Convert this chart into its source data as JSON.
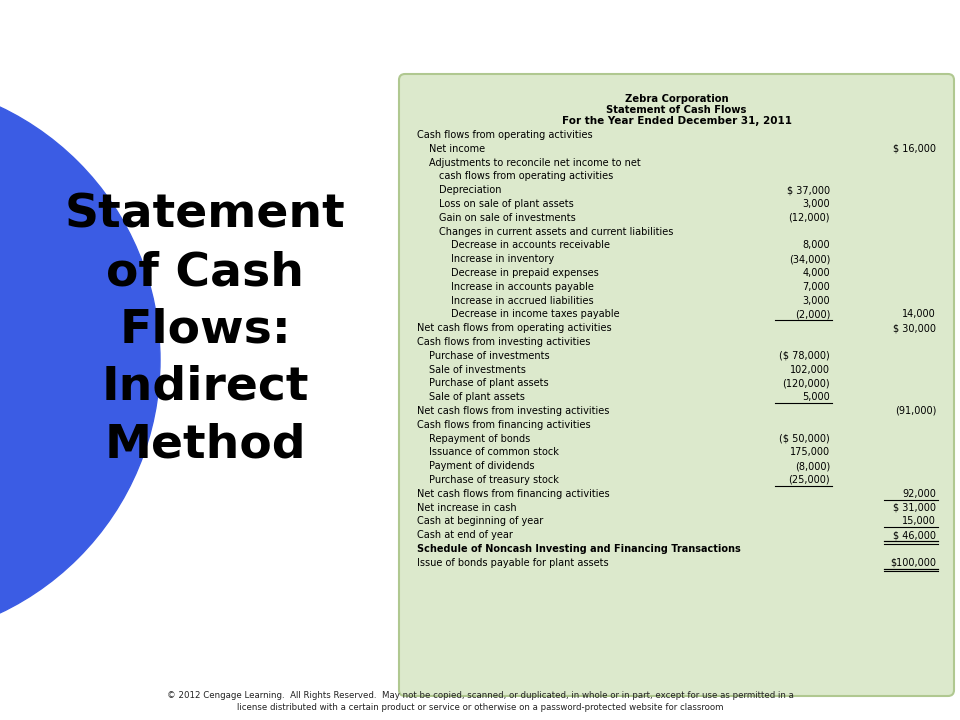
{
  "bg_color": "#ffffff",
  "blue_color": "#3b5ce4",
  "table_bg": "#dce9cc",
  "table_border": "#b0c890",
  "text_color": "#000000",
  "title_lines": [
    "Zebra Corporation",
    "Statement of Cash Flows",
    "For the Year Ended December 31, 2011"
  ],
  "left_title": "Statement\nof Cash\nFlows:\nIndirect\nMethod",
  "footer_text": "© 2012 Cengage Learning.  All Rights Reserved.  May not be copied, scanned, or duplicated, in whole or in part, except for use as permitted in a\nlicense distributed with a certain product or service or otherwise on a password-protected website for classroom",
  "rows": [
    {
      "indent": 0,
      "label": "Cash flows from operating activities",
      "col1": "",
      "col2": "",
      "underline_col1": false,
      "underline_col2": false,
      "bold_label": false
    },
    {
      "indent": 1,
      "label": "Net income",
      "col1": "",
      "col2": "$ 16,000",
      "underline_col1": false,
      "underline_col2": false,
      "bold_label": false
    },
    {
      "indent": 1,
      "label": "Adjustments to reconcile net income to net",
      "col1": "",
      "col2": "",
      "underline_col1": false,
      "underline_col2": false,
      "bold_label": false
    },
    {
      "indent": 2,
      "label": "cash flows from operating activities",
      "col1": "",
      "col2": "",
      "underline_col1": false,
      "underline_col2": false,
      "bold_label": false
    },
    {
      "indent": 2,
      "label": "Depreciation",
      "col1": "$ 37,000",
      "col2": "",
      "underline_col1": false,
      "underline_col2": false,
      "bold_label": false
    },
    {
      "indent": 2,
      "label": "Loss on sale of plant assets",
      "col1": "3,000",
      "col2": "",
      "underline_col1": false,
      "underline_col2": false,
      "bold_label": false
    },
    {
      "indent": 2,
      "label": "Gain on sale of investments",
      "col1": "(12,000)",
      "col2": "",
      "underline_col1": false,
      "underline_col2": false,
      "bold_label": false
    },
    {
      "indent": 2,
      "label": "Changes in current assets and current liabilities",
      "col1": "",
      "col2": "",
      "underline_col1": false,
      "underline_col2": false,
      "bold_label": false
    },
    {
      "indent": 3,
      "label": "Decrease in accounts receivable",
      "col1": "8,000",
      "col2": "",
      "underline_col1": false,
      "underline_col2": false,
      "bold_label": false
    },
    {
      "indent": 3,
      "label": "Increase in inventory",
      "col1": "(34,000)",
      "col2": "",
      "underline_col1": false,
      "underline_col2": false,
      "bold_label": false
    },
    {
      "indent": 3,
      "label": "Decrease in prepaid expenses",
      "col1": "4,000",
      "col2": "",
      "underline_col1": false,
      "underline_col2": false,
      "bold_label": false
    },
    {
      "indent": 3,
      "label": "Increase in accounts payable",
      "col1": "7,000",
      "col2": "",
      "underline_col1": false,
      "underline_col2": false,
      "bold_label": false
    },
    {
      "indent": 3,
      "label": "Increase in accrued liabilities",
      "col1": "3,000",
      "col2": "",
      "underline_col1": false,
      "underline_col2": false,
      "bold_label": false
    },
    {
      "indent": 3,
      "label": "Decrease in income taxes payable",
      "col1": "(2,000)",
      "col2": "14,000",
      "underline_col1": true,
      "underline_col2": false,
      "bold_label": false
    },
    {
      "indent": 0,
      "label": "Net cash flows from operating activities",
      "col1": "",
      "col2": "$ 30,000",
      "underline_col1": false,
      "underline_col2": false,
      "bold_label": false
    },
    {
      "indent": 0,
      "label": "Cash flows from investing activities",
      "col1": "",
      "col2": "",
      "underline_col1": false,
      "underline_col2": false,
      "bold_label": false
    },
    {
      "indent": 1,
      "label": "Purchase of investments",
      "col1": "($ 78,000)",
      "col2": "",
      "underline_col1": false,
      "underline_col2": false,
      "bold_label": false
    },
    {
      "indent": 1,
      "label": "Sale of investments",
      "col1": "102,000",
      "col2": "",
      "underline_col1": false,
      "underline_col2": false,
      "bold_label": false
    },
    {
      "indent": 1,
      "label": "Purchase of plant assets",
      "col1": "(120,000)",
      "col2": "",
      "underline_col1": false,
      "underline_col2": false,
      "bold_label": false
    },
    {
      "indent": 1,
      "label": "Sale of plant assets",
      "col1": "5,000",
      "col2": "",
      "underline_col1": true,
      "underline_col2": false,
      "bold_label": false
    },
    {
      "indent": 0,
      "label": "Net cash flows from investing activities",
      "col1": "",
      "col2": "(91,000)",
      "underline_col1": false,
      "underline_col2": false,
      "bold_label": false
    },
    {
      "indent": 0,
      "label": "Cash flows from financing activities",
      "col1": "",
      "col2": "",
      "underline_col1": false,
      "underline_col2": false,
      "bold_label": false
    },
    {
      "indent": 1,
      "label": "Repayment of bonds",
      "col1": "($ 50,000)",
      "col2": "",
      "underline_col1": false,
      "underline_col2": false,
      "bold_label": false
    },
    {
      "indent": 1,
      "label": "Issuance of common stock",
      "col1": "175,000",
      "col2": "",
      "underline_col1": false,
      "underline_col2": false,
      "bold_label": false
    },
    {
      "indent": 1,
      "label": "Payment of dividends",
      "col1": "(8,000)",
      "col2": "",
      "underline_col1": false,
      "underline_col2": false,
      "bold_label": false
    },
    {
      "indent": 1,
      "label": "Purchase of treasury stock",
      "col1": "(25,000)",
      "col2": "",
      "underline_col1": true,
      "underline_col2": false,
      "bold_label": false
    },
    {
      "indent": 0,
      "label": "Net cash flows from financing activities",
      "col1": "",
      "col2": "92,000",
      "underline_col1": false,
      "underline_col2": true,
      "bold_label": false
    },
    {
      "indent": 0,
      "label": "Net increase in cash",
      "col1": "",
      "col2": "$ 31,000",
      "underline_col1": false,
      "underline_col2": false,
      "bold_label": false
    },
    {
      "indent": 0,
      "label": "Cash at beginning of year",
      "col1": "",
      "col2": "15,000",
      "underline_col1": false,
      "underline_col2": true,
      "bold_label": false
    },
    {
      "indent": 0,
      "label": "Cash at end of year",
      "col1": "",
      "col2": "$ 46,000",
      "underline_col1": false,
      "underline_col2": true,
      "bold_label": false
    },
    {
      "indent": 0,
      "label": "Schedule of Noncash Investing and Financing Transactions",
      "col1": "",
      "col2": "",
      "underline_col1": false,
      "underline_col2": false,
      "bold_label": true
    },
    {
      "indent": 0,
      "label": "Issue of bonds payable for plant assets",
      "col1": "",
      "col2": "$100,000",
      "underline_col1": false,
      "underline_col2": true,
      "bold_label": false
    }
  ],
  "double_underline_rows": [
    29,
    31
  ]
}
